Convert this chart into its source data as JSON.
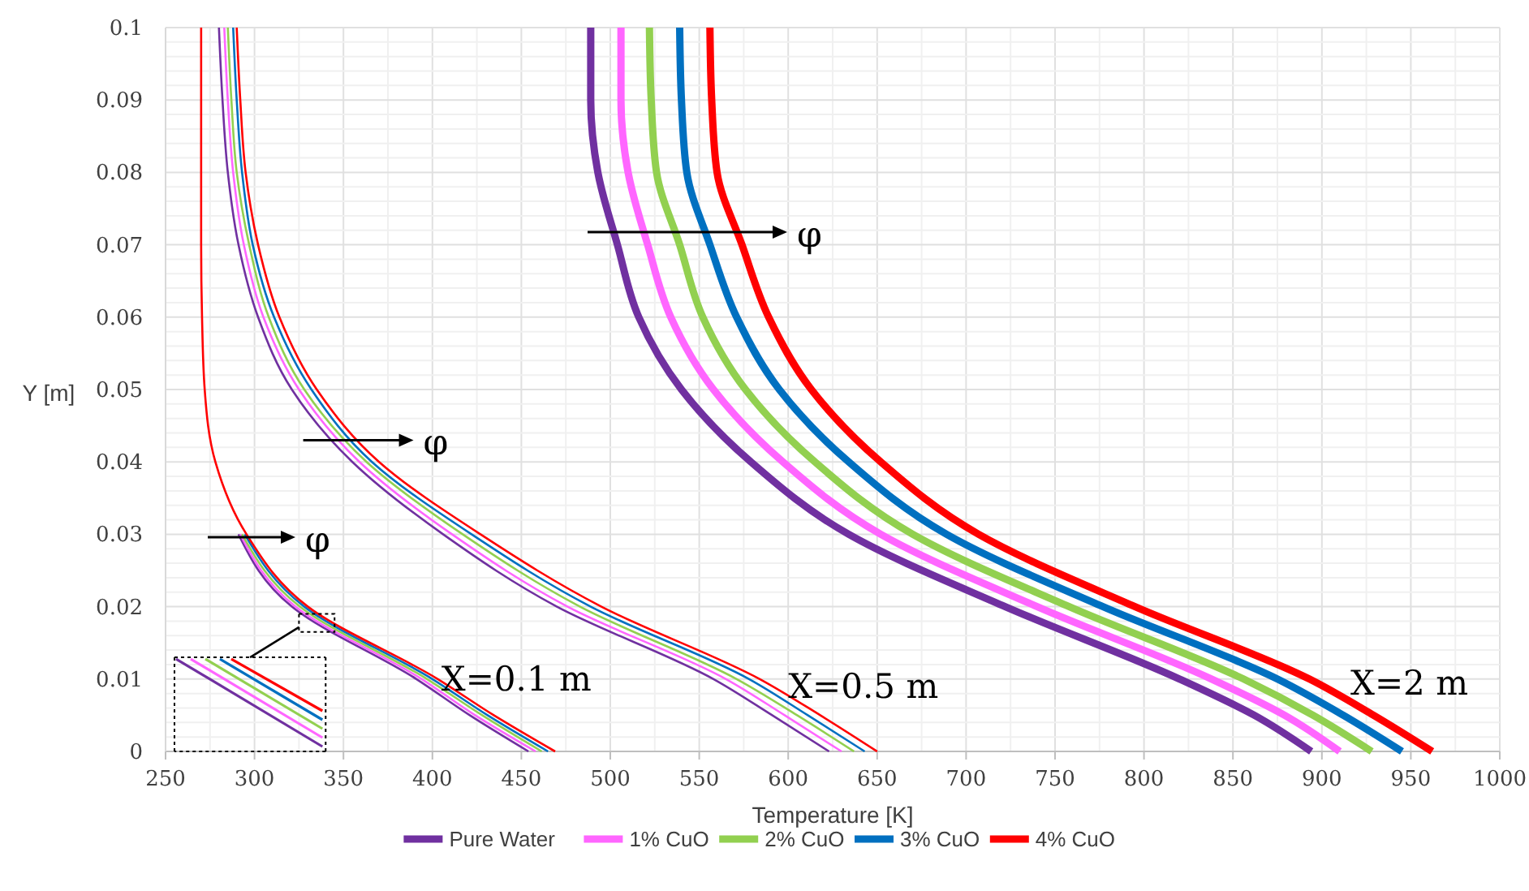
{
  "chart_data": {
    "type": "line",
    "xlabel": "Temperature [K]",
    "ylabel": "Y [m]",
    "xlim": [
      250,
      1000
    ],
    "xticks": [
      250,
      300,
      350,
      400,
      450,
      500,
      550,
      600,
      650,
      700,
      750,
      800,
      850,
      900,
      950,
      1000
    ],
    "ylim": [
      0,
      0.1
    ],
    "yticks": [
      0,
      0.01,
      0.02,
      0.03,
      0.04,
      0.05,
      0.06,
      0.07,
      0.08,
      0.09,
      0.1
    ],
    "grid": true,
    "legend": "bottom",
    "marker": "none",
    "line_style": "solid",
    "series": [
      {
        "color": "#7030a0",
        "x": [
          291,
          321,
          391,
          421,
          454
        ],
        "values": [
          0.03,
          0.02,
          0.01,
          0.005,
          0
        ]
      },
      {
        "color": "#ff66ff",
        "x": [
          292,
          323,
          394,
          424,
          458
        ],
        "values": [
          0.03,
          0.02,
          0.01,
          0.005,
          0
        ]
      },
      {
        "color": "#92d050",
        "x": [
          293,
          325.5,
          397,
          428,
          461.5
        ],
        "values": [
          0.03,
          0.02,
          0.01,
          0.005,
          0
        ]
      },
      {
        "color": "#0070c0",
        "x": [
          294.5,
          328,
          400,
          431,
          465
        ],
        "values": [
          0.03,
          0.02,
          0.01,
          0.005,
          0
        ]
      },
      {
        "color": "#ff0000",
        "x": [
          270,
          270,
          270,
          270,
          270.5,
          272,
          278,
          295.5,
          330,
          403,
          434.5,
          469
        ],
        "values": [
          0.1,
          0.09,
          0.08,
          0.07,
          0.06,
          0.05,
          0.04,
          0.03,
          0.02,
          0.01,
          0.005,
          0
        ]
      },
      {
        "color": "#7030a0",
        "x": [
          280,
          282,
          285,
          291,
          302,
          321,
          355,
          406,
          470,
          558,
          591,
          623
        ],
        "values": [
          0.1,
          0.09,
          0.08,
          0.07,
          0.06,
          0.05,
          0.04,
          0.03,
          0.02,
          0.01,
          0.005,
          0
        ]
      },
      {
        "color": "#ff66ff",
        "x": [
          283,
          285,
          288,
          294,
          305,
          325,
          359,
          411,
          476,
          565,
          598,
          630
        ],
        "values": [
          0.1,
          0.09,
          0.08,
          0.07,
          0.06,
          0.05,
          0.04,
          0.03,
          0.02,
          0.01,
          0.005,
          0
        ]
      },
      {
        "color": "#92d050",
        "x": [
          285,
          287,
          290,
          297,
          308,
          328,
          363,
          417,
          483,
          571,
          605,
          637
        ],
        "values": [
          0.1,
          0.09,
          0.08,
          0.07,
          0.06,
          0.05,
          0.04,
          0.03,
          0.02,
          0.01,
          0.005,
          0
        ]
      },
      {
        "color": "#0070c0",
        "x": [
          288,
          290,
          293,
          299,
          311,
          332,
          366,
          422,
          489,
          578,
          611,
          643
        ],
        "values": [
          0.1,
          0.09,
          0.08,
          0.07,
          0.06,
          0.05,
          0.04,
          0.03,
          0.02,
          0.01,
          0.005,
          0
        ]
      },
      {
        "color": "#ff0000",
        "x": [
          290,
          292,
          295,
          302,
          314,
          335,
          370,
          427,
          495,
          584,
          618,
          650
        ],
        "values": [
          0.1,
          0.09,
          0.08,
          0.07,
          0.06,
          0.05,
          0.04,
          0.03,
          0.02,
          0.01,
          0.005,
          0
        ]
      },
      {
        "name": "Pure Water",
        "color": "#7030a0",
        "x": [
          489,
          489,
          493,
          504,
          516,
          540,
          579,
          634,
          722,
          820,
          862,
          894
        ],
        "values": [
          0.1,
          0.09,
          0.08,
          0.07,
          0.06,
          0.05,
          0.04,
          0.03,
          0.02,
          0.01,
          0.005,
          0
        ]
      },
      {
        "name": "1% CuO",
        "color": "#ff66ff",
        "x": [
          506,
          506,
          510,
          521,
          534,
          558,
          597,
          652,
          740,
          838,
          879,
          910
        ],
        "values": [
          0.1,
          0.09,
          0.08,
          0.07,
          0.06,
          0.05,
          0.04,
          0.03,
          0.02,
          0.01,
          0.005,
          0
        ]
      },
      {
        "name": "2% CuO",
        "color": "#92d050",
        "x": [
          522,
          523,
          526,
          539,
          552,
          576,
          615,
          670,
          758,
          856,
          895,
          928
        ],
        "values": [
          0.1,
          0.09,
          0.08,
          0.07,
          0.06,
          0.05,
          0.04,
          0.03,
          0.02,
          0.01,
          0.005,
          0
        ]
      },
      {
        "name": "3% CuO",
        "color": "#0070c0",
        "x": [
          539,
          540,
          543,
          556,
          571,
          595,
          634,
          689,
          777,
          875,
          912,
          945
        ],
        "values": [
          0.1,
          0.09,
          0.08,
          0.07,
          0.06,
          0.05,
          0.04,
          0.03,
          0.02,
          0.01,
          0.005,
          0
        ]
      },
      {
        "name": "4% CuO",
        "color": "#ff0000",
        "x": [
          556,
          557,
          560,
          574,
          589,
          613,
          652,
          707,
          795,
          893,
          929,
          962
        ],
        "values": [
          0.1,
          0.09,
          0.08,
          0.07,
          0.06,
          0.05,
          0.04,
          0.03,
          0.02,
          0.01,
          0.005,
          0
        ]
      }
    ],
    "annotations": [
      "φ",
      {
        "text": "φ",
        "x": 352,
        "y": 0.043
      },
      "φ",
      {
        "text": "X=0.1 m",
        "x": 405,
        "y": 0.01
      },
      {
        "text": "X=0.5 m",
        "x": 600,
        "y": 0.009
      },
      "X=2 m"
    ]
  }
}
